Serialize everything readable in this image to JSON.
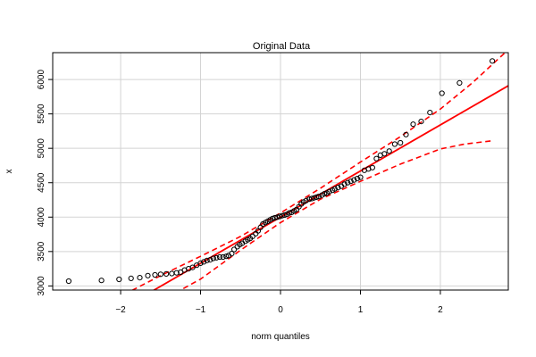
{
  "chart_data": {
    "type": "scatter",
    "title": "Original Data",
    "xlabel": "norm quantiles",
    "ylabel": "x",
    "xlim": [
      -2.85,
      2.85
    ],
    "ylim": [
      2940,
      6390
    ],
    "x_ticks": [
      -2,
      -1,
      0,
      1,
      2
    ],
    "y_ticks": [
      3000,
      3500,
      4000,
      4500,
      5000,
      5500,
      6000
    ],
    "grid": true,
    "colors": {
      "points": "#000000",
      "reference_line": "#ff0000",
      "envelope": "#ff0000",
      "grid": "#d3d3d3"
    },
    "points": [
      {
        "x": -2.65,
        "y": 3070
      },
      {
        "x": -2.24,
        "y": 3080
      },
      {
        "x": -2.02,
        "y": 3095
      },
      {
        "x": -1.87,
        "y": 3110
      },
      {
        "x": -1.76,
        "y": 3120
      },
      {
        "x": -1.66,
        "y": 3150
      },
      {
        "x": -1.57,
        "y": 3160
      },
      {
        "x": -1.5,
        "y": 3170
      },
      {
        "x": -1.43,
        "y": 3175
      },
      {
        "x": -1.36,
        "y": 3180
      },
      {
        "x": -1.3,
        "y": 3190
      },
      {
        "x": -1.25,
        "y": 3200
      },
      {
        "x": -1.2,
        "y": 3230
      },
      {
        "x": -1.15,
        "y": 3250
      },
      {
        "x": -1.1,
        "y": 3270
      },
      {
        "x": -1.05,
        "y": 3300
      },
      {
        "x": -1.0,
        "y": 3330
      },
      {
        "x": -0.96,
        "y": 3350
      },
      {
        "x": -0.92,
        "y": 3370
      },
      {
        "x": -0.88,
        "y": 3380
      },
      {
        "x": -0.84,
        "y": 3400
      },
      {
        "x": -0.8,
        "y": 3410
      },
      {
        "x": -0.76,
        "y": 3420
      },
      {
        "x": -0.72,
        "y": 3420
      },
      {
        "x": -0.68,
        "y": 3430
      },
      {
        "x": -0.65,
        "y": 3440
      },
      {
        "x": -0.61,
        "y": 3470
      },
      {
        "x": -0.58,
        "y": 3530
      },
      {
        "x": -0.54,
        "y": 3570
      },
      {
        "x": -0.51,
        "y": 3600
      },
      {
        "x": -0.48,
        "y": 3620
      },
      {
        "x": -0.44,
        "y": 3650
      },
      {
        "x": -0.41,
        "y": 3670
      },
      {
        "x": -0.38,
        "y": 3690
      },
      {
        "x": -0.35,
        "y": 3720
      },
      {
        "x": -0.31,
        "y": 3760
      },
      {
        "x": -0.28,
        "y": 3800
      },
      {
        "x": -0.25,
        "y": 3850
      },
      {
        "x": -0.22,
        "y": 3900
      },
      {
        "x": -0.19,
        "y": 3920
      },
      {
        "x": -0.16,
        "y": 3940
      },
      {
        "x": -0.13,
        "y": 3960
      },
      {
        "x": -0.1,
        "y": 3980
      },
      {
        "x": -0.07,
        "y": 3990
      },
      {
        "x": -0.04,
        "y": 4000
      },
      {
        "x": -0.01,
        "y": 4010
      },
      {
        "x": 0.02,
        "y": 4020
      },
      {
        "x": 0.05,
        "y": 4030
      },
      {
        "x": 0.08,
        "y": 4040
      },
      {
        "x": 0.11,
        "y": 4060
      },
      {
        "x": 0.14,
        "y": 4070
      },
      {
        "x": 0.17,
        "y": 4090
      },
      {
        "x": 0.2,
        "y": 4110
      },
      {
        "x": 0.23,
        "y": 4150
      },
      {
        "x": 0.26,
        "y": 4190
      },
      {
        "x": 0.29,
        "y": 4220
      },
      {
        "x": 0.32,
        "y": 4240
      },
      {
        "x": 0.36,
        "y": 4260
      },
      {
        "x": 0.39,
        "y": 4270
      },
      {
        "x": 0.42,
        "y": 4280
      },
      {
        "x": 0.45,
        "y": 4290
      },
      {
        "x": 0.48,
        "y": 4300
      },
      {
        "x": 0.52,
        "y": 4320
      },
      {
        "x": 0.55,
        "y": 4340
      },
      {
        "x": 0.58,
        "y": 4350
      },
      {
        "x": 0.61,
        "y": 4370
      },
      {
        "x": 0.65,
        "y": 4390
      },
      {
        "x": 0.68,
        "y": 4410
      },
      {
        "x": 0.72,
        "y": 4430
      },
      {
        "x": 0.76,
        "y": 4450
      },
      {
        "x": 0.8,
        "y": 4480
      },
      {
        "x": 0.84,
        "y": 4500
      },
      {
        "x": 0.88,
        "y": 4520
      },
      {
        "x": 0.92,
        "y": 4540
      },
      {
        "x": 0.96,
        "y": 4560
      },
      {
        "x": 1.0,
        "y": 4580
      },
      {
        "x": 1.05,
        "y": 4680
      },
      {
        "x": 1.1,
        "y": 4700
      },
      {
        "x": 1.15,
        "y": 4720
      },
      {
        "x": 1.2,
        "y": 4850
      },
      {
        "x": 1.25,
        "y": 4900
      },
      {
        "x": 1.3,
        "y": 4920
      },
      {
        "x": 1.36,
        "y": 4960
      },
      {
        "x": 1.43,
        "y": 5060
      },
      {
        "x": 1.5,
        "y": 5080
      },
      {
        "x": 1.57,
        "y": 5200
      },
      {
        "x": 1.66,
        "y": 5350
      },
      {
        "x": 1.76,
        "y": 5390
      },
      {
        "x": 1.87,
        "y": 5520
      },
      {
        "x": 2.02,
        "y": 5800
      },
      {
        "x": 2.24,
        "y": 5950
      },
      {
        "x": 2.65,
        "y": 6270
      }
    ],
    "reference_line": {
      "intercept": 4000,
      "slope": 670
    },
    "envelope_upper": [
      {
        "x": -2.75,
        "y": 2400
      },
      {
        "x": -2.0,
        "y": 2850
      },
      {
        "x": -1.5,
        "y": 3150
      },
      {
        "x": -1.0,
        "y": 3430
      },
      {
        "x": -0.5,
        "y": 3720
      },
      {
        "x": 0.0,
        "y": 4060
      },
      {
        "x": 0.5,
        "y": 4420
      },
      {
        "x": 1.0,
        "y": 4800
      },
      {
        "x": 1.5,
        "y": 5170
      },
      {
        "x": 2.0,
        "y": 5570
      },
      {
        "x": 2.4,
        "y": 5950
      },
      {
        "x": 2.8,
        "y": 6380
      }
    ],
    "envelope_lower": [
      {
        "x": -2.75,
        "y": 1900
      },
      {
        "x": -2.0,
        "y": 2400
      },
      {
        "x": -1.5,
        "y": 2780
      },
      {
        "x": -1.0,
        "y": 3100
      },
      {
        "x": -0.5,
        "y": 3520
      },
      {
        "x": 0.0,
        "y": 3920
      },
      {
        "x": 0.5,
        "y": 4260
      },
      {
        "x": 1.0,
        "y": 4520
      },
      {
        "x": 1.5,
        "y": 4770
      },
      {
        "x": 2.0,
        "y": 4990
      },
      {
        "x": 2.3,
        "y": 5060
      },
      {
        "x": 2.65,
        "y": 5110
      }
    ]
  }
}
